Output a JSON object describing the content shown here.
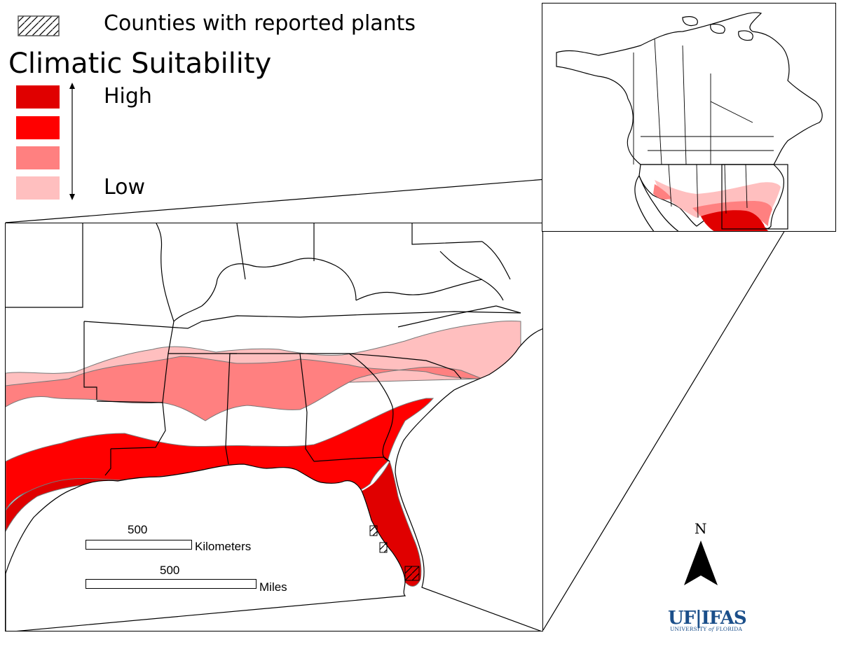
{
  "legend": {
    "hatch_label": "Counties with reported plants",
    "title": "Climatic Suitability",
    "high_label": "High",
    "low_label": "Low",
    "classes": [
      {
        "level": 4,
        "color": "#e00000"
      },
      {
        "level": 3,
        "color": "#ff0000"
      },
      {
        "level": 2,
        "color": "#ff8080"
      },
      {
        "level": 1,
        "color": "#ffbfbf"
      }
    ]
  },
  "scale_bars": {
    "km": {
      "value": "500",
      "unit": "Kilometers"
    },
    "mi": {
      "value": "500",
      "unit": "Miles"
    }
  },
  "north_arrow": {
    "label": "N"
  },
  "logo": {
    "main": "UF|IFAS",
    "sub_prefix": "UNIVERSITY ",
    "sub_of": "of",
    "sub_suffix": " FLORIDA"
  },
  "colors": {
    "very_high": "#e00000",
    "high": "#ff0000",
    "moderate": "#ff8080",
    "low": "#ffbfbf",
    "outline": "#000000",
    "zone_edge": "#777777"
  }
}
